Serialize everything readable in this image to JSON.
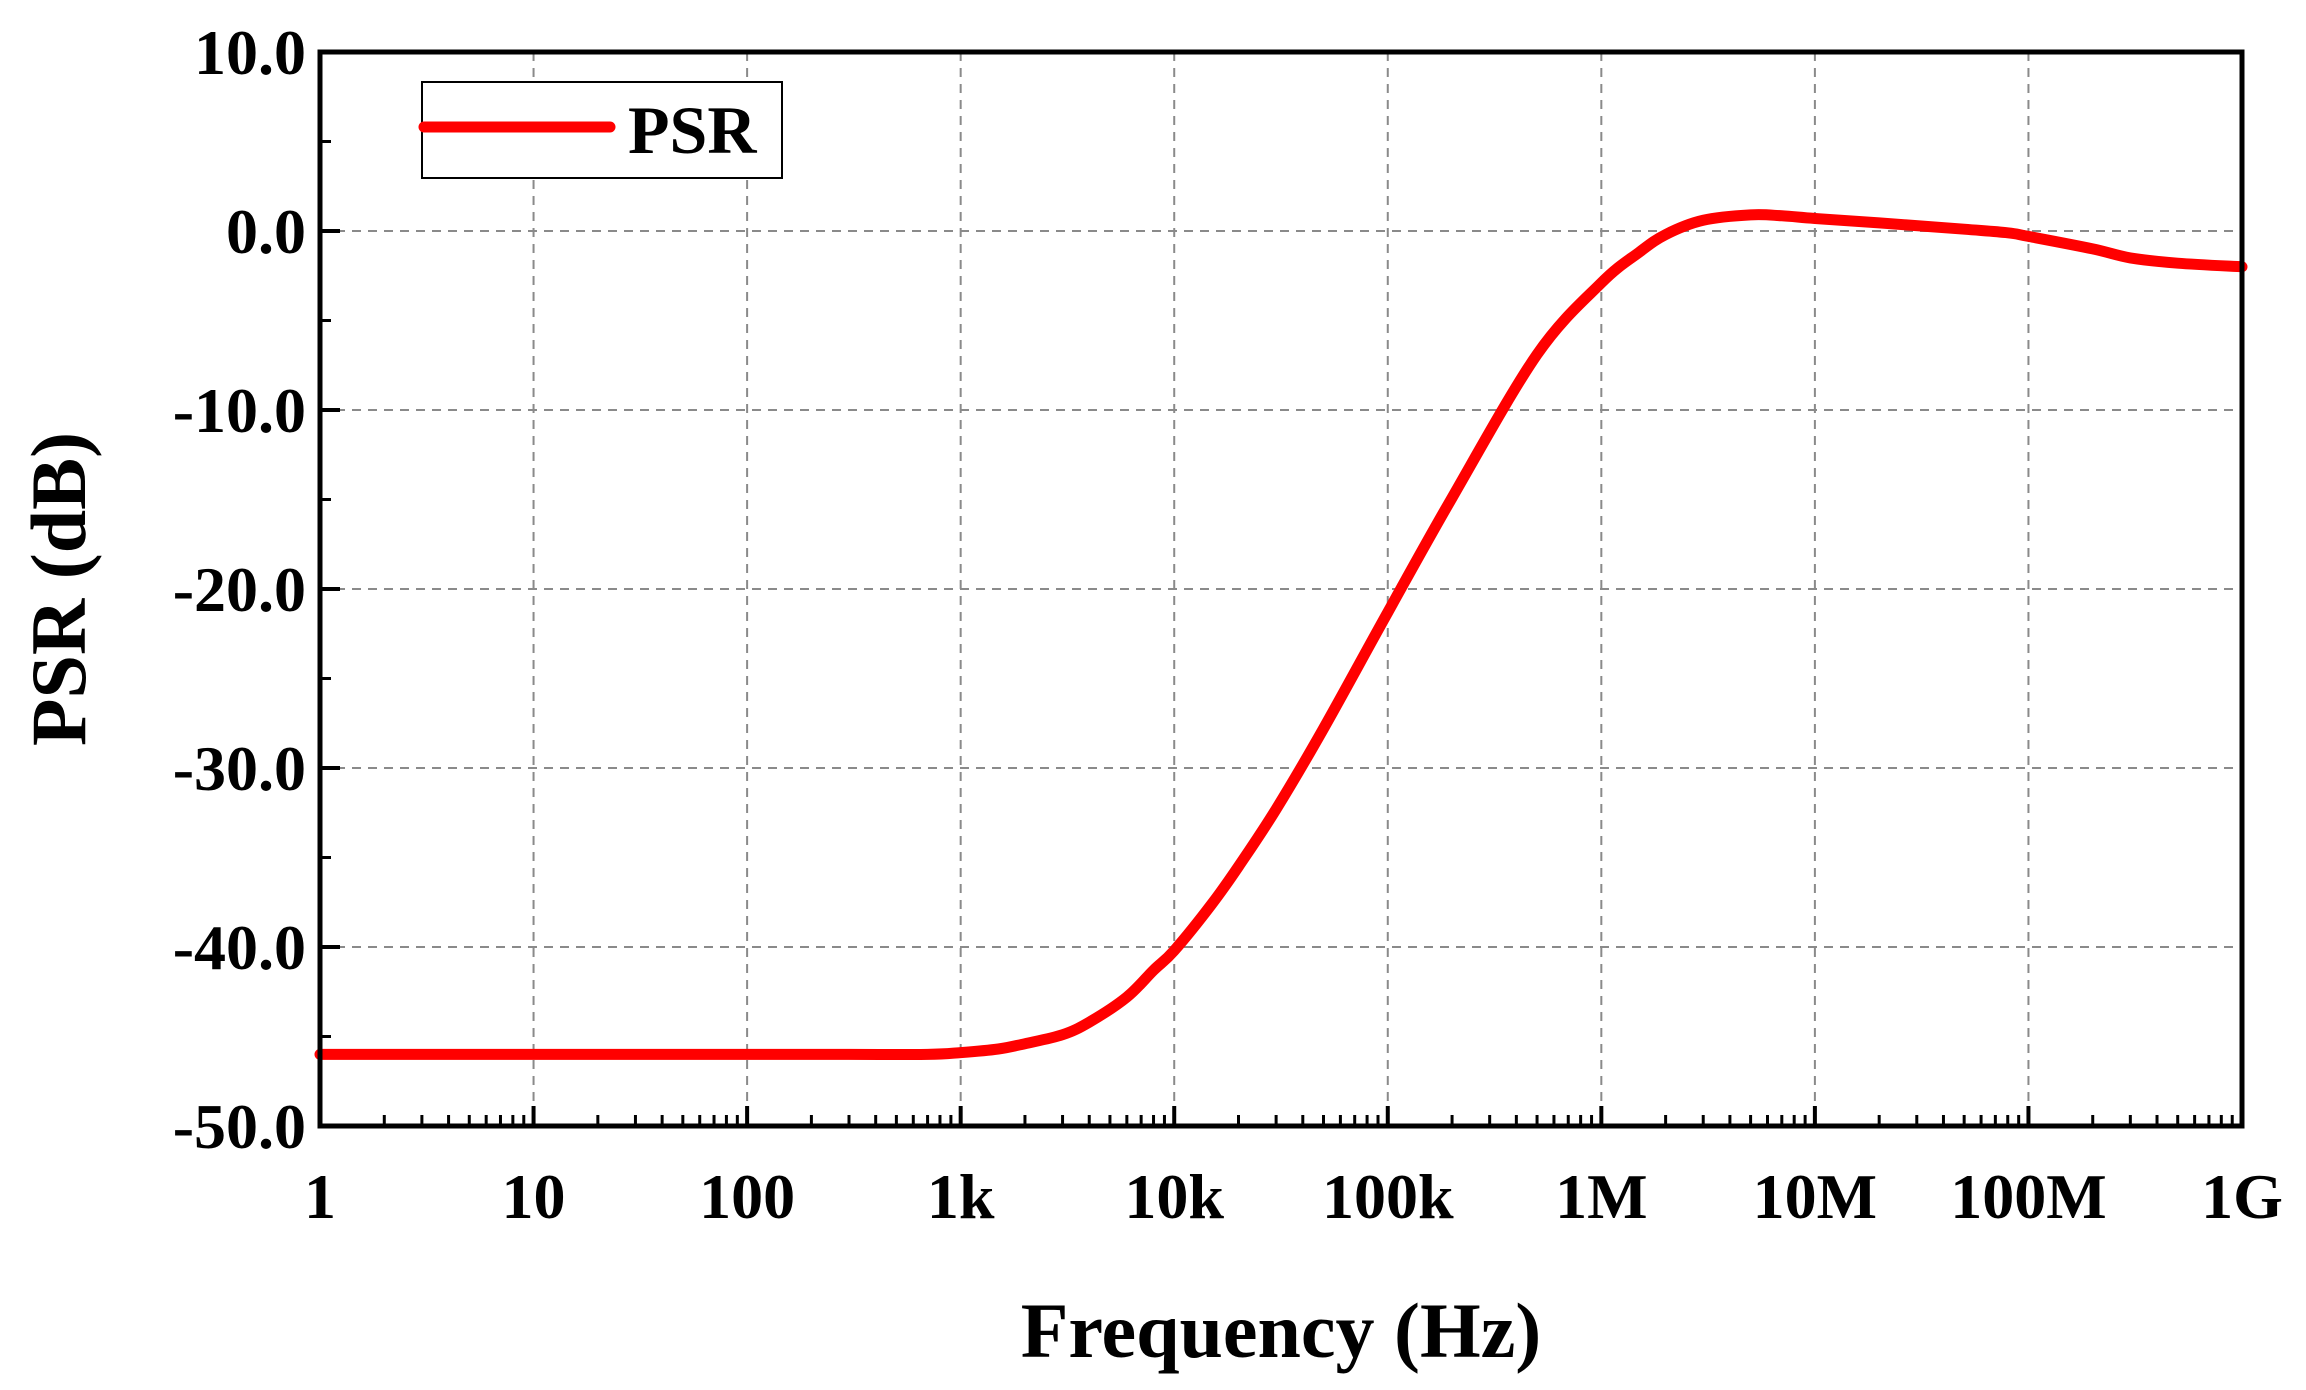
{
  "chart_data": {
    "type": "line",
    "title": "",
    "xlabel": "Frequency (Hz)",
    "ylabel": "PSR (dB)",
    "xscale": "log",
    "xlim": [
      1,
      1000000000
    ],
    "ylim": [
      -50,
      10
    ],
    "grid": true,
    "legend_position": "top-left",
    "x_ticks": [
      1,
      10,
      100,
      1000,
      10000,
      100000,
      1000000,
      10000000,
      100000000,
      1000000000
    ],
    "x_tick_labels": [
      "1",
      "10",
      "100",
      "1k",
      "10k",
      "100k",
      "1M",
      "10M",
      "100M",
      "1G"
    ],
    "y_ticks": [
      -50,
      -40,
      -30,
      -20,
      -10,
      0,
      10
    ],
    "y_tick_labels": [
      "-50.0",
      "-40.0",
      "-30.0",
      "-20.0",
      "-10.0",
      "0.0",
      "10.0"
    ],
    "series": [
      {
        "name": "PSR",
        "color": "#ff0000",
        "x": [
          1,
          10,
          100,
          300,
          700,
          1000,
          1500,
          2000,
          3000,
          4000,
          6000,
          8000,
          10000,
          15000,
          20000,
          30000,
          50000,
          100000,
          200000,
          500000,
          1000000,
          1500000,
          2000000,
          3000000,
          5000000,
          7000000,
          10000000,
          20000000,
          50000000,
          80000000,
          100000000,
          200000000,
          300000000,
          500000000,
          1000000000
        ],
        "values": [
          -46,
          -46,
          -46,
          -46,
          -46,
          -45.9,
          -45.7,
          -45.4,
          -44.9,
          -44.2,
          -42.8,
          -41.3,
          -40.2,
          -37.6,
          -35.5,
          -32.3,
          -27.8,
          -21.3,
          -14.9,
          -6.9,
          -2.9,
          -1.2,
          -0.2,
          0.6,
          0.9,
          0.85,
          0.7,
          0.45,
          0.1,
          -0.1,
          -0.3,
          -1.0,
          -1.5,
          -1.8,
          -2.0
        ]
      }
    ]
  }
}
